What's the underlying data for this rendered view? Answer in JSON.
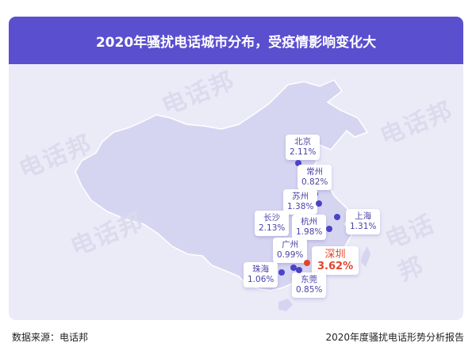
{
  "header": {
    "title": "2020年骚扰电话城市分布，受疫情影响变化大"
  },
  "watermark": "电话邦",
  "colors": {
    "header": "#5a4fcf",
    "map": "#d6d5f1",
    "card": "#ebeaf7",
    "highlight": "#e0452c",
    "accent": "#4a43a8"
  },
  "cities": [
    {
      "name": "北京",
      "pct": "2.11%"
    },
    {
      "name": "常州",
      "pct": "0.82%"
    },
    {
      "name": "苏州",
      "pct": "1.38%"
    },
    {
      "name": "上海",
      "pct": "1.31%"
    },
    {
      "name": "长沙",
      "pct": "2.13%"
    },
    {
      "name": "杭州",
      "pct": "1.98%"
    },
    {
      "name": "广州",
      "pct": "0.99%"
    },
    {
      "name": "深圳",
      "pct": "3.62%",
      "highlight": true
    },
    {
      "name": "珠海",
      "pct": "1.06%"
    },
    {
      "name": "东莞",
      "pct": "0.85%"
    }
  ],
  "footer": {
    "source": "数据来源：电话邦",
    "report": "2020年度骚扰电话形势分析报告"
  }
}
